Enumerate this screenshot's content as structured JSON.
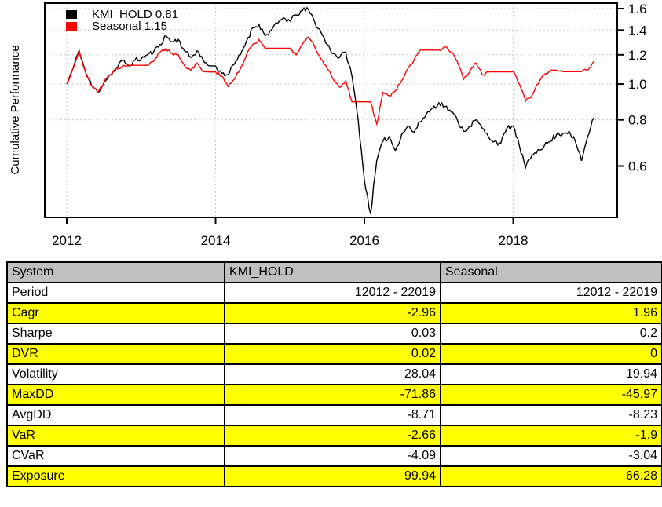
{
  "chart_data": {
    "type": "line",
    "title": "",
    "xlabel": "",
    "ylabel": "Cumulative Performance",
    "y_scale": "log",
    "xlim": [
      2011.7,
      2019.45
    ],
    "ylim": [
      0.42,
      1.65
    ],
    "x_ticks": [
      2012,
      2014,
      2016,
      2018
    ],
    "y_ticks": [
      1.6,
      1.4,
      1.2,
      1.0,
      0.8,
      0.6
    ],
    "grid": true,
    "legend_position": "top-left",
    "x_start": 2012.0,
    "x_step": 0.0833333,
    "series": [
      {
        "name": "KMI_HOLD",
        "legend_label": "KMI_HOLD 0.81",
        "final_value": 0.81,
        "color": "#000000",
        "values": [
          1.0,
          1.1,
          1.235,
          1.08,
          0.99,
          0.95,
          1.01,
          1.06,
          1.1,
          1.16,
          1.12,
          1.16,
          1.17,
          1.2,
          1.22,
          1.28,
          1.35,
          1.3,
          1.32,
          1.23,
          1.18,
          1.23,
          1.16,
          1.12,
          1.12,
          1.07,
          1.06,
          1.13,
          1.2,
          1.31,
          1.42,
          1.45,
          1.35,
          1.4,
          1.46,
          1.51,
          1.48,
          1.54,
          1.58,
          1.59,
          1.47,
          1.38,
          1.28,
          1.21,
          1.18,
          1.22,
          1.05,
          0.8,
          0.55,
          0.445,
          0.62,
          0.7,
          0.72,
          0.66,
          0.73,
          0.77,
          0.74,
          0.79,
          0.83,
          0.86,
          0.89,
          0.87,
          0.84,
          0.8,
          0.745,
          0.77,
          0.8,
          0.76,
          0.72,
          0.7,
          0.69,
          0.76,
          0.77,
          0.68,
          0.595,
          0.64,
          0.665,
          0.68,
          0.7,
          0.73,
          0.735,
          0.745,
          0.7,
          0.62,
          0.72,
          0.81
        ]
      },
      {
        "name": "Seasonal",
        "legend_label": "Seasonal 1.15",
        "final_value": 1.15,
        "color": "#ff0000",
        "values": [
          1.0,
          1.1,
          1.23,
          1.08,
          0.99,
          0.95,
          1.01,
          1.06,
          1.1,
          1.12,
          1.124,
          1.124,
          1.124,
          1.124,
          1.15,
          1.22,
          1.25,
          1.21,
          1.2,
          1.12,
          1.09,
          1.14,
          1.08,
          1.078,
          1.078,
          1.05,
          0.985,
          1.03,
          1.1,
          1.2,
          1.28,
          1.32,
          1.25,
          1.25,
          1.25,
          1.25,
          1.25,
          1.2,
          1.28,
          1.34,
          1.26,
          1.17,
          1.1,
          1.03,
          0.98,
          1.02,
          0.895,
          0.895,
          0.895,
          0.895,
          0.78,
          0.95,
          0.93,
          0.96,
          1.02,
          1.1,
          1.16,
          1.236,
          1.236,
          1.236,
          1.236,
          1.26,
          1.22,
          1.15,
          1.03,
          1.08,
          1.14,
          1.06,
          1.079,
          1.079,
          1.079,
          1.079,
          1.079,
          1.0,
          0.9,
          0.93,
          1.0,
          1.06,
          1.09,
          1.09,
          1.08,
          1.08,
          1.08,
          1.08,
          1.09,
          1.15
        ]
      }
    ]
  },
  "chart_style": {
    "grid_color": "#c8c8c8",
    "axis_color": "#000000"
  },
  "table": {
    "headers": [
      "System",
      "KMI_HOLD",
      "Seasonal"
    ],
    "rows": [
      {
        "label": "Period",
        "values": [
          "12012 - 22019",
          "12012 - 22019"
        ],
        "highlight": false
      },
      {
        "label": "Cagr",
        "values": [
          "-2.96",
          "1.96"
        ],
        "highlight": true
      },
      {
        "label": "Sharpe",
        "values": [
          "0.03",
          "0.2"
        ],
        "highlight": false
      },
      {
        "label": "DVR",
        "values": [
          "0.02",
          "0"
        ],
        "highlight": true
      },
      {
        "label": "Volatility",
        "values": [
          "28.04",
          "19.94"
        ],
        "highlight": false
      },
      {
        "label": "MaxDD",
        "values": [
          "-71.86",
          "-45.97"
        ],
        "highlight": true
      },
      {
        "label": "AvgDD",
        "values": [
          "-8.71",
          "-8.23"
        ],
        "highlight": false
      },
      {
        "label": "VaR",
        "values": [
          "-2.66",
          "-1.9"
        ],
        "highlight": true
      },
      {
        "label": "CVaR",
        "values": [
          "-4.09",
          "-3.04"
        ],
        "highlight": false
      },
      {
        "label": "Exposure",
        "values": [
          "99.94",
          "66.28"
        ],
        "highlight": true
      }
    ],
    "colors": {
      "header_bg": "#c0c0c0",
      "highlight_bg": "#ffff00",
      "border": "#000000"
    }
  }
}
